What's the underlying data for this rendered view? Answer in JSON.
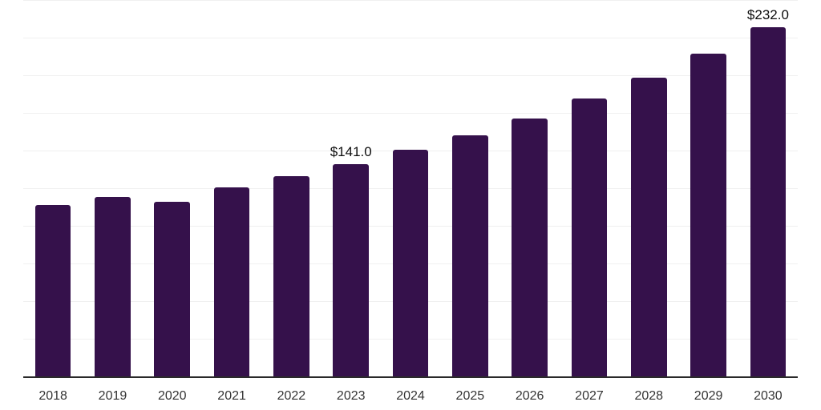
{
  "chart_data": {
    "type": "bar",
    "title": "",
    "xlabel": "",
    "ylabel": "",
    "categories": [
      "2018",
      "2019",
      "2020",
      "2021",
      "2022",
      "2023",
      "2024",
      "2025",
      "2026",
      "2027",
      "2028",
      "2029",
      "2030"
    ],
    "values": [
      114,
      119,
      116,
      125.5,
      133,
      141,
      150.5,
      160,
      171.5,
      184.5,
      198.5,
      214.5,
      232
    ],
    "value_labels": {
      "2023": "$141.0",
      "2030": "$232.0"
    },
    "ylim": [
      0,
      250
    ],
    "grid_step": 25,
    "grid_on": true,
    "legend_position": "none",
    "colors": {
      "bar": "#35114B",
      "gridline": "#f0f0f0",
      "axis_line": "#2a2a2a",
      "tick_label": "#333333",
      "value_label": "#0d0d0d"
    }
  }
}
